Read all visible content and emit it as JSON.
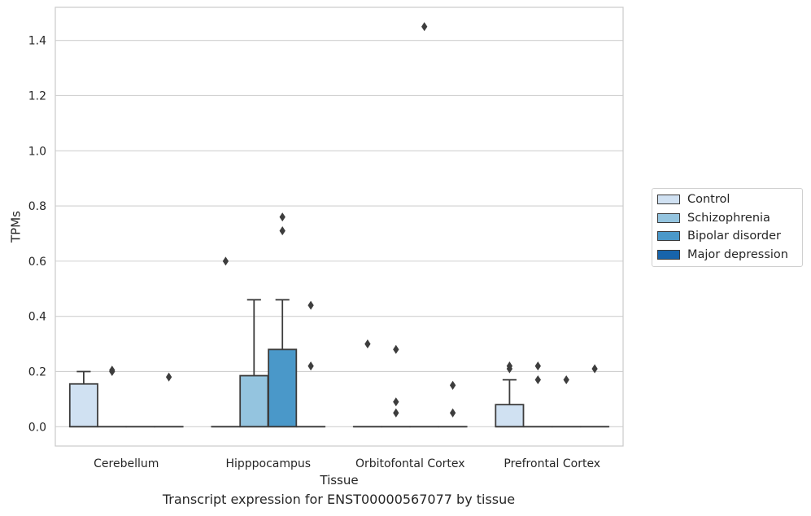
{
  "chart_data": {
    "type": "box",
    "xlabel": "Tissue",
    "ylabel": "TPMs",
    "ylim": [
      -0.07,
      1.52
    ],
    "yticks": [
      0.0,
      0.2,
      0.4,
      0.6,
      0.8,
      1.0,
      1.2,
      1.4
    ],
    "ytick_labels": [
      "0.0",
      "0.2",
      "0.4",
      "0.6",
      "0.8",
      "1.0",
      "1.2",
      "1.4"
    ],
    "grid": "horizontal",
    "legend_position": "right",
    "categories": [
      "Cerebellum",
      "Hipppocampus",
      "Orbitofontal Cortex",
      "Prefrontal Cortex"
    ],
    "series": [
      {
        "name": "Control",
        "color": "#d0e1f2",
        "boxes": [
          {
            "min": 0.0,
            "q1": 0.0,
            "median": 0.0,
            "q3": 0.155,
            "max": 0.2,
            "outliers": []
          },
          {
            "min": 0.0,
            "q1": 0.0,
            "median": 0.0,
            "q3": 0.0,
            "max": 0.0,
            "outliers": [
              0.6
            ]
          },
          {
            "min": 0.0,
            "q1": 0.0,
            "median": 0.0,
            "q3": 0.0,
            "max": 0.0,
            "outliers": [
              0.3
            ]
          },
          {
            "min": 0.0,
            "q1": 0.0,
            "median": 0.0,
            "q3": 0.08,
            "max": 0.17,
            "outliers": [
              0.21,
              0.22
            ]
          }
        ]
      },
      {
        "name": "Schizophrenia",
        "color": "#94c4df",
        "boxes": [
          {
            "min": 0.0,
            "q1": 0.0,
            "median": 0.0,
            "q3": 0.0,
            "max": 0.0,
            "outliers": [
              0.2,
              0.205
            ]
          },
          {
            "min": 0.0,
            "q1": 0.0,
            "median": 0.0,
            "q3": 0.185,
            "max": 0.46,
            "outliers": []
          },
          {
            "min": 0.0,
            "q1": 0.0,
            "median": 0.0,
            "q3": 0.0,
            "max": 0.0,
            "outliers": [
              0.05,
              0.09,
              0.28
            ]
          },
          {
            "min": 0.0,
            "q1": 0.0,
            "median": 0.0,
            "q3": 0.0,
            "max": 0.0,
            "outliers": [
              0.17,
              0.22
            ]
          }
        ]
      },
      {
        "name": "Bipolar disorder",
        "color": "#4a98c9",
        "boxes": [
          {
            "min": 0.0,
            "q1": 0.0,
            "median": 0.0,
            "q3": 0.0,
            "max": 0.0,
            "outliers": []
          },
          {
            "min": 0.0,
            "q1": 0.0,
            "median": 0.0,
            "q3": 0.28,
            "max": 0.46,
            "outliers": [
              0.71,
              0.76
            ]
          },
          {
            "min": 0.0,
            "q1": 0.0,
            "median": 0.0,
            "q3": 0.0,
            "max": 0.0,
            "outliers": [
              1.45
            ]
          },
          {
            "min": 0.0,
            "q1": 0.0,
            "median": 0.0,
            "q3": 0.0,
            "max": 0.0,
            "outliers": [
              0.17
            ]
          }
        ]
      },
      {
        "name": "Major depression",
        "color": "#1764ab",
        "boxes": [
          {
            "min": 0.0,
            "q1": 0.0,
            "median": 0.0,
            "q3": 0.0,
            "max": 0.0,
            "outliers": [
              0.18
            ]
          },
          {
            "min": 0.0,
            "q1": 0.0,
            "median": 0.0,
            "q3": 0.0,
            "max": 0.0,
            "outliers": [
              0.22,
              0.44
            ]
          },
          {
            "min": 0.0,
            "q1": 0.0,
            "median": 0.0,
            "q3": 0.0,
            "max": 0.0,
            "outliers": [
              0.05,
              0.15
            ]
          },
          {
            "min": 0.0,
            "q1": 0.0,
            "median": 0.0,
            "q3": 0.0,
            "max": 0.0,
            "outliers": [
              0.21
            ]
          }
        ]
      }
    ]
  },
  "caption": "Transcript expression for ENST00000567077 by tissue"
}
